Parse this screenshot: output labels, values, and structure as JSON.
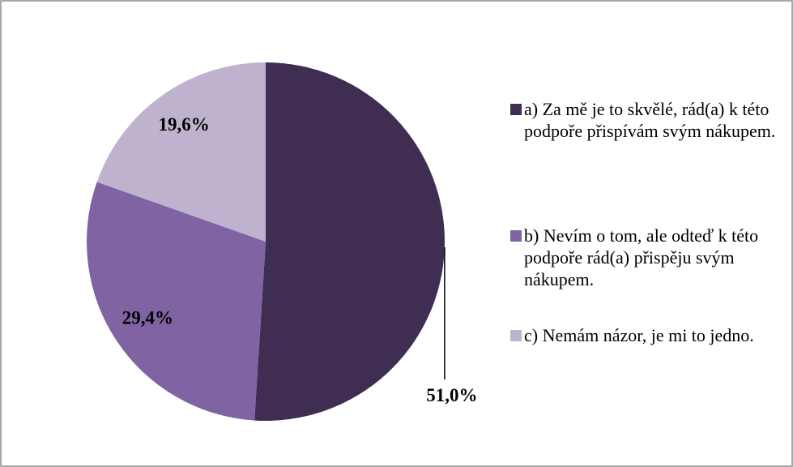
{
  "chart_data": {
    "type": "pie",
    "categories": [
      "a) Za mě je to skvělé, rád(a) k této podpoře přispívám svým nákupem.",
      "b) Nevím o tom, ale odteď k této podpoře rád(a) přispěju svým nákupem.",
      "c) Nemám názor, je mi to jedno."
    ],
    "values": [
      51.0,
      29.4,
      19.6
    ],
    "value_labels": [
      "51,0%",
      "29,4%",
      "19,6%"
    ],
    "colors": [
      "#3f2e52",
      "#7f63a3",
      "#bfb2cf"
    ],
    "legend": "right"
  }
}
